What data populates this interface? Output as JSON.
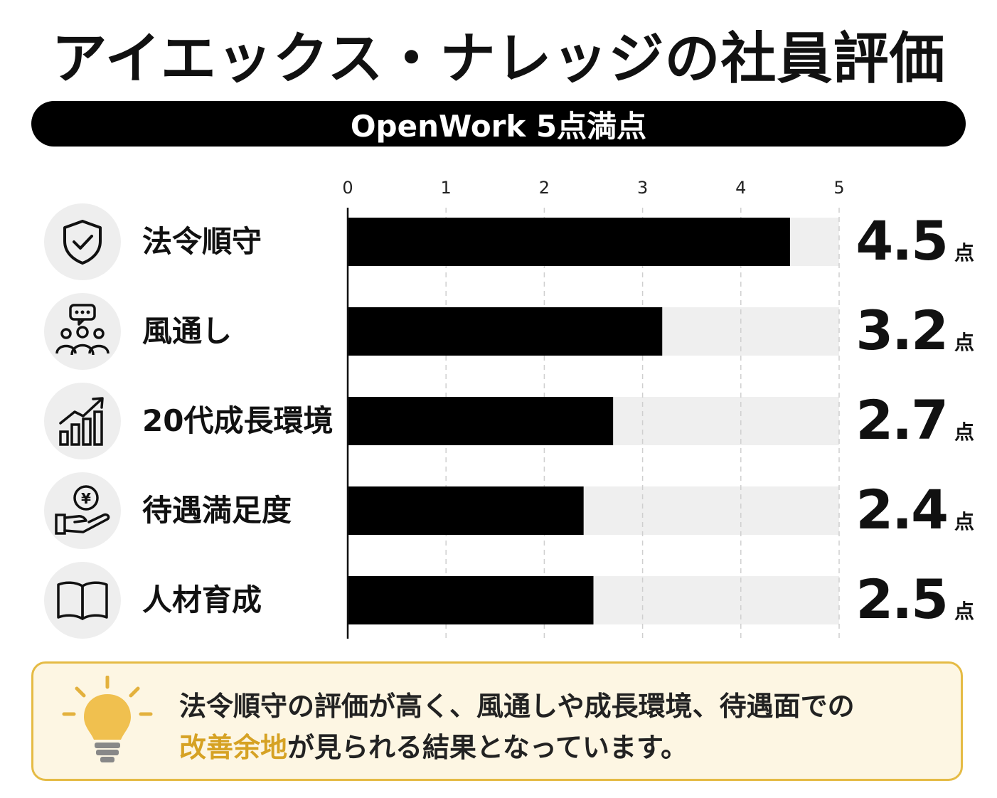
{
  "title": "アイエックス・ナレッジの社員評価",
  "subtitle": "OpenWork 5点満点",
  "colors": {
    "bar": "#000000",
    "track": "#efefef",
    "accent": "#d6a224",
    "box_border": "#e5bb45",
    "box_bg": "#fdf6e3"
  },
  "categories": [
    {
      "label": "法令順守",
      "icon": "shield-check-icon"
    },
    {
      "label": "風通し",
      "icon": "people-chat-icon"
    },
    {
      "label": "20代成長環境",
      "icon": "growth-chart-icon"
    },
    {
      "label": "待遇満足度",
      "icon": "yen-hand-icon"
    },
    {
      "label": "人材育成",
      "icon": "open-book-icon"
    }
  ],
  "score_unit": "点",
  "scores": [
    "4.5",
    "3.2",
    "2.7",
    "2.4",
    "2.5"
  ],
  "chart_data": {
    "type": "bar",
    "orientation": "horizontal",
    "categories": [
      "法令順守",
      "風通し",
      "20代成長環境",
      "待遇満足度",
      "人材育成"
    ],
    "values": [
      4.5,
      3.2,
      2.7,
      2.4,
      2.5
    ],
    "xlim": [
      0,
      5
    ],
    "xticks": [
      "0",
      "1",
      "2",
      "3",
      "4",
      "5"
    ],
    "grid": true,
    "title": "アイエックス・ナレッジの社員評価",
    "subtitle": "OpenWork 5点満点"
  },
  "summary": {
    "line1": "法令順守の評価が高く、風通しや成長環境、待遇面での",
    "highlight": "改善余地",
    "line2_rest": "が見られる結果となっています。"
  }
}
